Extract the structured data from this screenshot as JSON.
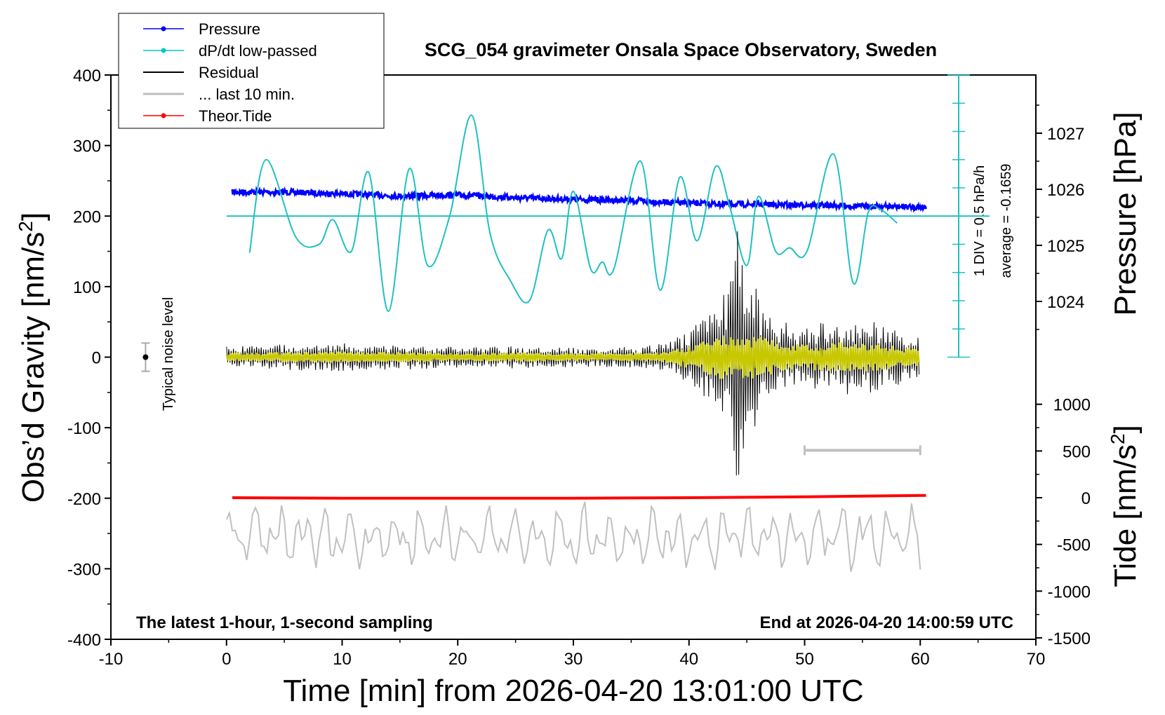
{
  "chart_data": {
    "type": "line",
    "title": "SCG_054 gravimeter Onsala Space Observatory, Sweden",
    "footer_left": "The latest 1-hour, 1-second sampling",
    "footer_right": "End at 2026-04-20 14:00:59 UTC",
    "xlabel": "Time [min] from 2026-04-20 13:01:00 UTC",
    "ylabel_left": "Obs’d Gravity [nm/s",
    "ylabel_left_sup": "2",
    "ylabel_left_close": "]",
    "ylabel_right_top": "Pressure [hPa]",
    "ylabel_right_bottom": "Tide [nm/s",
    "ylabel_right_bottom_sup": "2",
    "ylabel_right_bottom_close": "]",
    "xlim": [
      -10,
      70
    ],
    "ylim": [
      -400,
      400
    ],
    "xticks": [
      "-10",
      "0",
      "10",
      "20",
      "30",
      "40",
      "50",
      "60",
      "70"
    ],
    "yticks_left": [
      "400",
      "300",
      "200",
      "100",
      "0",
      "-100",
      "-200",
      "-300",
      "-400"
    ],
    "pressure_ticks": [
      "1027",
      "1026",
      "1025",
      "1024"
    ],
    "pressure_tick_values": [
      1027,
      1026,
      1025,
      1024
    ],
    "tide_ticks": [
      "1000",
      "500",
      "0",
      "-500",
      "-1000",
      "-1500"
    ],
    "tide_tick_values": [
      1000,
      500,
      0,
      -500,
      -1000,
      -1500
    ],
    "noise_label": "Typical noise level",
    "div_label": "1 DIV = 0.5 hPa/h",
    "average_label": "average = -0.1659",
    "legend": [
      {
        "label": "Pressure",
        "color": "#0000ff",
        "marker": true,
        "width": 1
      },
      {
        "label": "dP/dt low-passed",
        "color": "#00c8c8",
        "marker": true,
        "width": 1
      },
      {
        "label": "Residual",
        "color": "#000000",
        "marker": false,
        "width": 2
      },
      {
        "label": "... last 10 min.",
        "color": "#bebebe",
        "marker": false,
        "width": 3
      },
      {
        "label": "Theor.Tide",
        "color": "#ff0000",
        "marker": true,
        "width": 1
      }
    ],
    "colors": {
      "pressure": "#0000ff",
      "dpdt": "#20c0c0",
      "residual": "#000000",
      "residual_filtered": "#c8c800",
      "last10": "#c0c0c0",
      "tide": "#ff0000"
    },
    "series": [
      {
        "name": "Pressure",
        "unit": "hPa",
        "x": [
          0.5,
          5,
          10,
          15,
          20,
          25,
          30,
          35,
          40,
          45,
          50,
          55,
          60.5
        ],
        "values": [
          1025.95,
          1025.95,
          1025.92,
          1025.88,
          1025.9,
          1025.85,
          1025.82,
          1025.8,
          1025.75,
          1025.73,
          1025.72,
          1025.7,
          1025.68
        ]
      },
      {
        "name": "dP/dt low-passed",
        "unit": "gravity-axis",
        "x": [
          2,
          3.4,
          6,
          8,
          9.2,
          10.8,
          12.3,
          14,
          15.8,
          17.4,
          19.3,
          21.2,
          22.8,
          24.5,
          26.2,
          27.8,
          29,
          30,
          31.5,
          32.5,
          33.5,
          35.8,
          37.5,
          39.2,
          40.7,
          42.3,
          43.5,
          45,
          46,
          47.5,
          48.7,
          50.2,
          52.5,
          54.2,
          55.5,
          56.5,
          58
        ],
        "values": [
          148,
          280,
          170,
          160,
          195,
          150,
          262,
          65,
          267,
          130,
          200,
          343,
          175,
          110,
          80,
          180,
          140,
          235,
          125,
          135,
          125,
          278,
          95,
          255,
          165,
          270,
          215,
          130,
          228,
          150,
          155,
          150,
          288,
          105,
          205,
          210,
          190
        ]
      },
      {
        "name": "Residual",
        "unit": "nm/s2",
        "x": [
          0,
          5,
          10,
          15,
          20,
          25,
          30,
          35,
          38,
          40,
          41.5,
          42.5,
          43.5,
          44.2,
          44.8,
          45.5,
          46.5,
          48,
          50,
          52,
          55,
          58,
          60
        ],
        "envelope": [
          15,
          18,
          20,
          18,
          15,
          16,
          14,
          15,
          20,
          40,
          60,
          80,
          120,
          190,
          140,
          110,
          70,
          50,
          45,
          50,
          55,
          40,
          30
        ]
      },
      {
        "name": "... last 10 min.",
        "unit": "gravity-axis",
        "x_start": 0,
        "x_end": 60,
        "center": -255,
        "span_x": [
          50,
          60
        ],
        "span_y": -132
      },
      {
        "name": "Theor.Tide",
        "unit": "nm/s2",
        "x": [
          0.5,
          10,
          20,
          30,
          40,
          50,
          60.5
        ],
        "values": [
          0,
          -5,
          -5,
          -5,
          0,
          10,
          25
        ]
      }
    ],
    "pressure_reference_y": 200,
    "noise_bar": {
      "x": -7,
      "y": 0,
      "half_range": 20
    },
    "grid": false,
    "legend_placement": "top-left"
  }
}
